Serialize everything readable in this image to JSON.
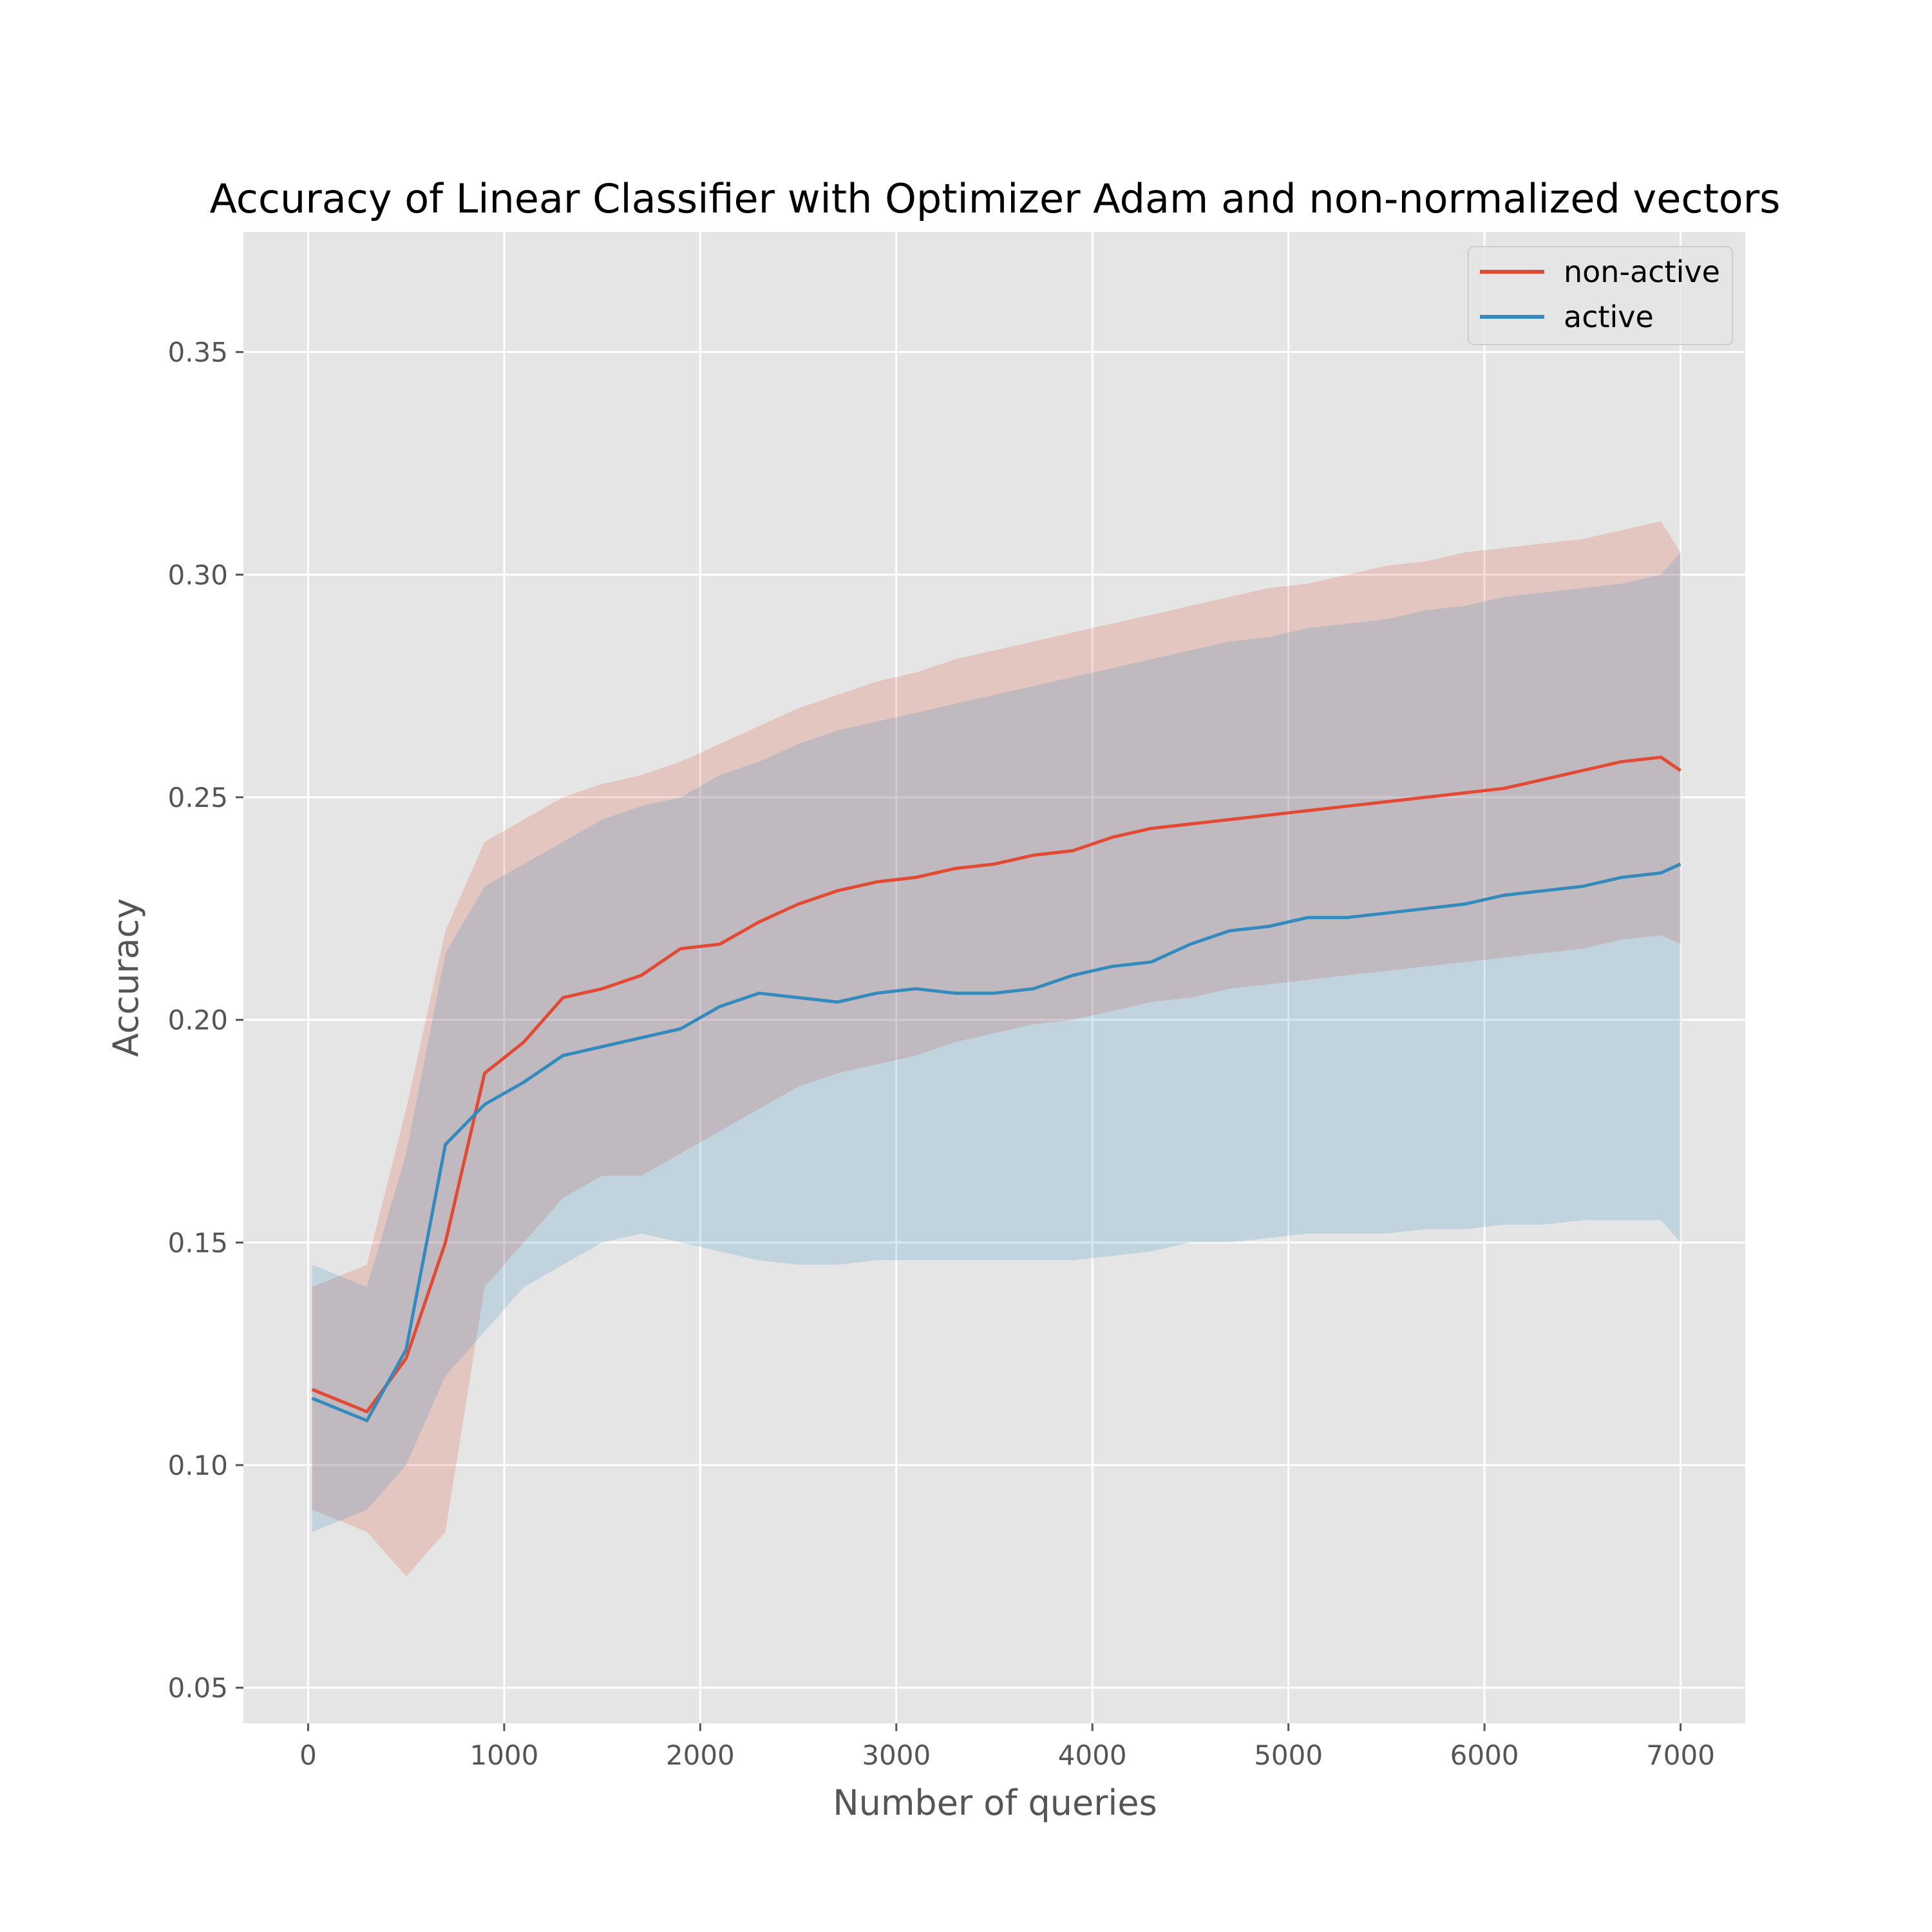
{
  "chart_data": {
    "type": "line",
    "title": "Accuracy of Linear Classifier with Optimizer Adam and non-normalized vectors",
    "xlabel": "Number of queries",
    "ylabel": "Accuracy",
    "xlim": [
      -330,
      7330
    ],
    "ylim": [
      0.042,
      0.377
    ],
    "xticks": [
      0,
      1000,
      2000,
      3000,
      4000,
      5000,
      6000,
      7000
    ],
    "xtick_labels": [
      "0",
      "1000",
      "2000",
      "3000",
      "4000",
      "5000",
      "6000",
      "7000"
    ],
    "yticks": [
      0.05,
      0.1,
      0.15,
      0.2,
      0.25,
      0.3,
      0.35
    ],
    "ytick_labels": [
      "0.05",
      "0.10",
      "0.15",
      "0.20",
      "0.25",
      "0.30",
      "0.35"
    ],
    "grid": true,
    "legend_position": "top-right",
    "x": [
      20,
      300,
      500,
      700,
      900,
      1100,
      1300,
      1500,
      1700,
      1900,
      2100,
      2300,
      2500,
      2700,
      2900,
      3100,
      3300,
      3500,
      3700,
      3900,
      4100,
      4300,
      4500,
      4700,
      4900,
      5100,
      5300,
      5500,
      5700,
      5900,
      6100,
      6300,
      6500,
      6700,
      6900,
      7000
    ],
    "series": [
      {
        "name": "non-active",
        "color": "#E24A33",
        "values": [
          0.117,
          0.112,
          0.124,
          0.15,
          0.188,
          0.195,
          0.205,
          0.207,
          0.21,
          0.216,
          0.217,
          0.222,
          0.226,
          0.229,
          0.231,
          0.232,
          0.234,
          0.235,
          0.237,
          0.238,
          0.241,
          0.243,
          0.244,
          0.245,
          0.246,
          0.247,
          0.248,
          0.249,
          0.25,
          0.251,
          0.252,
          0.254,
          0.256,
          0.258,
          0.259,
          0.256
        ],
        "band_lower": [
          0.09,
          0.085,
          0.075,
          0.085,
          0.14,
          0.15,
          0.16,
          0.165,
          0.165,
          0.17,
          0.175,
          0.18,
          0.185,
          0.188,
          0.19,
          0.192,
          0.195,
          0.197,
          0.199,
          0.2,
          0.202,
          0.204,
          0.205,
          0.207,
          0.208,
          0.209,
          0.21,
          0.211,
          0.212,
          0.213,
          0.214,
          0.215,
          0.216,
          0.218,
          0.219,
          0.217
        ],
        "band_upper": [
          0.14,
          0.145,
          0.18,
          0.22,
          0.24,
          0.245,
          0.25,
          0.253,
          0.255,
          0.258,
          0.262,
          0.266,
          0.27,
          0.273,
          0.276,
          0.278,
          0.281,
          0.283,
          0.285,
          0.287,
          0.289,
          0.291,
          0.293,
          0.295,
          0.297,
          0.298,
          0.3,
          0.302,
          0.303,
          0.305,
          0.306,
          0.307,
          0.308,
          0.31,
          0.312,
          0.305
        ]
      },
      {
        "name": "active",
        "color": "#348ABD",
        "values": [
          0.115,
          0.11,
          0.126,
          0.172,
          0.181,
          0.186,
          0.192,
          0.194,
          0.196,
          0.198,
          0.203,
          0.206,
          0.205,
          0.204,
          0.206,
          0.207,
          0.206,
          0.206,
          0.207,
          0.21,
          0.212,
          0.213,
          0.217,
          0.22,
          0.221,
          0.223,
          0.223,
          0.224,
          0.225,
          0.226,
          0.228,
          0.229,
          0.23,
          0.232,
          0.233,
          0.235
        ],
        "band_lower": [
          0.085,
          0.09,
          0.1,
          0.12,
          0.13,
          0.14,
          0.145,
          0.15,
          0.152,
          0.15,
          0.148,
          0.146,
          0.145,
          0.145,
          0.146,
          0.146,
          0.146,
          0.146,
          0.146,
          0.146,
          0.147,
          0.148,
          0.15,
          0.15,
          0.151,
          0.152,
          0.152,
          0.152,
          0.153,
          0.153,
          0.154,
          0.154,
          0.155,
          0.155,
          0.155,
          0.15
        ],
        "band_upper": [
          0.145,
          0.14,
          0.17,
          0.215,
          0.23,
          0.235,
          0.24,
          0.245,
          0.248,
          0.25,
          0.255,
          0.258,
          0.262,
          0.265,
          0.267,
          0.269,
          0.271,
          0.273,
          0.275,
          0.277,
          0.279,
          0.281,
          0.283,
          0.285,
          0.286,
          0.288,
          0.289,
          0.29,
          0.292,
          0.293,
          0.295,
          0.296,
          0.297,
          0.298,
          0.3,
          0.305
        ]
      }
    ]
  }
}
